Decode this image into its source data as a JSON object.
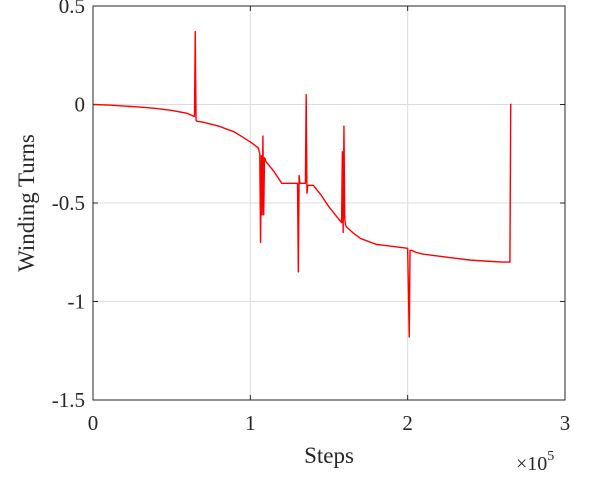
{
  "chart_data": {
    "type": "line",
    "title": "",
    "xlabel": "Steps",
    "ylabel": "Winding Turns",
    "x_exponent_label": "×10",
    "x_exponent_power": "5",
    "xlim": [
      0,
      3
    ],
    "ylim": [
      -1.5,
      0.5
    ],
    "xticks": [
      0,
      1,
      2,
      3
    ],
    "xtick_labels": [
      "0",
      "1",
      "2",
      "3"
    ],
    "yticks": [
      -1.5,
      -1,
      -0.5,
      0,
      0.5
    ],
    "ytick_labels": [
      "-1.5",
      "-1",
      "-0.5",
      "0",
      "0.5"
    ],
    "grid": true,
    "line_color": "#ff0000",
    "series": [
      {
        "x": [
          0,
          0.1,
          0.2,
          0.3,
          0.4,
          0.5,
          0.6,
          0.64,
          0.645,
          0.65,
          0.655,
          0.66,
          0.7,
          0.8,
          0.9,
          1.0,
          1.05,
          1.06,
          1.065,
          1.07,
          1.075,
          1.08,
          1.085,
          1.09,
          1.1,
          1.15,
          1.2,
          1.25,
          1.3,
          1.305,
          1.31,
          1.315,
          1.32,
          1.35,
          1.355,
          1.36,
          1.365,
          1.37,
          1.4,
          1.45,
          1.5,
          1.55,
          1.58,
          1.585,
          1.59,
          1.595,
          1.6,
          1.605,
          1.61,
          1.65,
          1.7,
          1.8,
          1.9,
          2.0,
          2.01,
          2.015,
          2.02,
          2.025,
          2.05,
          2.1,
          2.2,
          2.3,
          2.4,
          2.5,
          2.6,
          2.65,
          2.655,
          2.66
        ],
        "y": [
          0,
          -0.003,
          -0.008,
          -0.013,
          -0.02,
          -0.03,
          -0.045,
          -0.06,
          -0.06,
          0.37,
          -0.08,
          -0.085,
          -0.09,
          -0.11,
          -0.14,
          -0.19,
          -0.22,
          -0.25,
          -0.7,
          -0.26,
          -0.56,
          -0.16,
          -0.56,
          -0.27,
          -0.29,
          -0.34,
          -0.4,
          -0.4,
          -0.4,
          -0.85,
          -0.36,
          -0.4,
          -0.4,
          -0.4,
          0.05,
          -0.45,
          -0.41,
          -0.41,
          -0.41,
          -0.46,
          -0.52,
          -0.57,
          -0.6,
          -0.24,
          -0.65,
          -0.11,
          -0.58,
          -0.61,
          -0.62,
          -0.65,
          -0.68,
          -0.71,
          -0.72,
          -0.73,
          -1.18,
          -0.74,
          -0.74,
          -0.74,
          -0.75,
          -0.76,
          -0.77,
          -0.78,
          -0.79,
          -0.795,
          -0.8,
          -0.8,
          0.0,
          0.0
        ]
      }
    ]
  }
}
